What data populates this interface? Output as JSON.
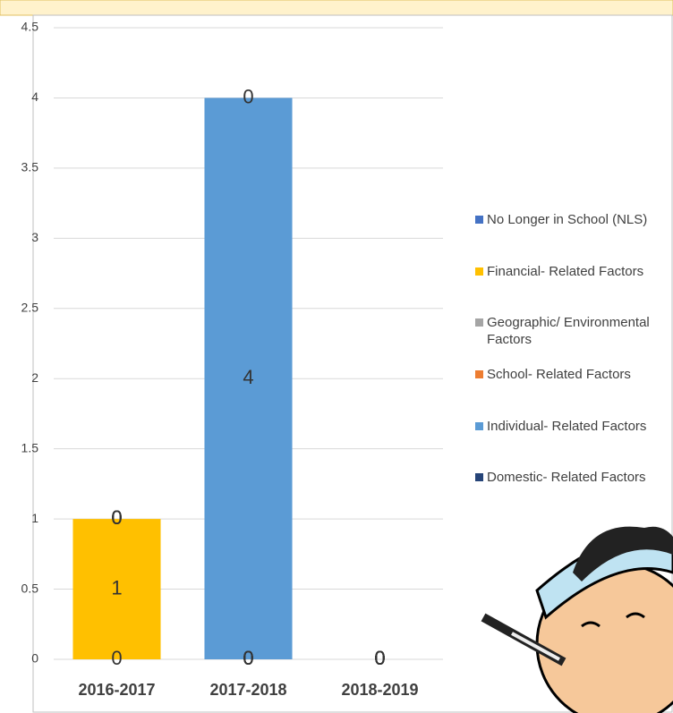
{
  "chart_data": {
    "type": "bar",
    "stacked": true,
    "categories": [
      "2016-2017",
      "2017-2018",
      "2018-2019"
    ],
    "series": [
      {
        "name": "No Longer in School (NLS)",
        "color": "#4472c4",
        "values": [
          0,
          0,
          0
        ]
      },
      {
        "name": "Financial- Related Factors",
        "color": "#ffc000",
        "values": [
          1,
          0,
          0
        ]
      },
      {
        "name": "Geographic/ Environmental Factors",
        "color": "#a5a5a5",
        "values": [
          0,
          0,
          0
        ]
      },
      {
        "name": "School- Related Factors",
        "color": "#ed7d31",
        "values": [
          0,
          0,
          0
        ]
      },
      {
        "name": "Individual- Related Factors",
        "color": "#5b9bd5",
        "values": [
          0,
          4,
          0
        ]
      },
      {
        "name": "Domestic- Related Factors",
        "color": "#264478",
        "values": [
          0,
          0,
          0
        ]
      }
    ],
    "ylim": [
      0,
      4.5
    ],
    "yticks": [
      0,
      0.5,
      1,
      1.5,
      2,
      2.5,
      3,
      3.5,
      4,
      4.5
    ],
    "grid": true,
    "legend": "right"
  }
}
